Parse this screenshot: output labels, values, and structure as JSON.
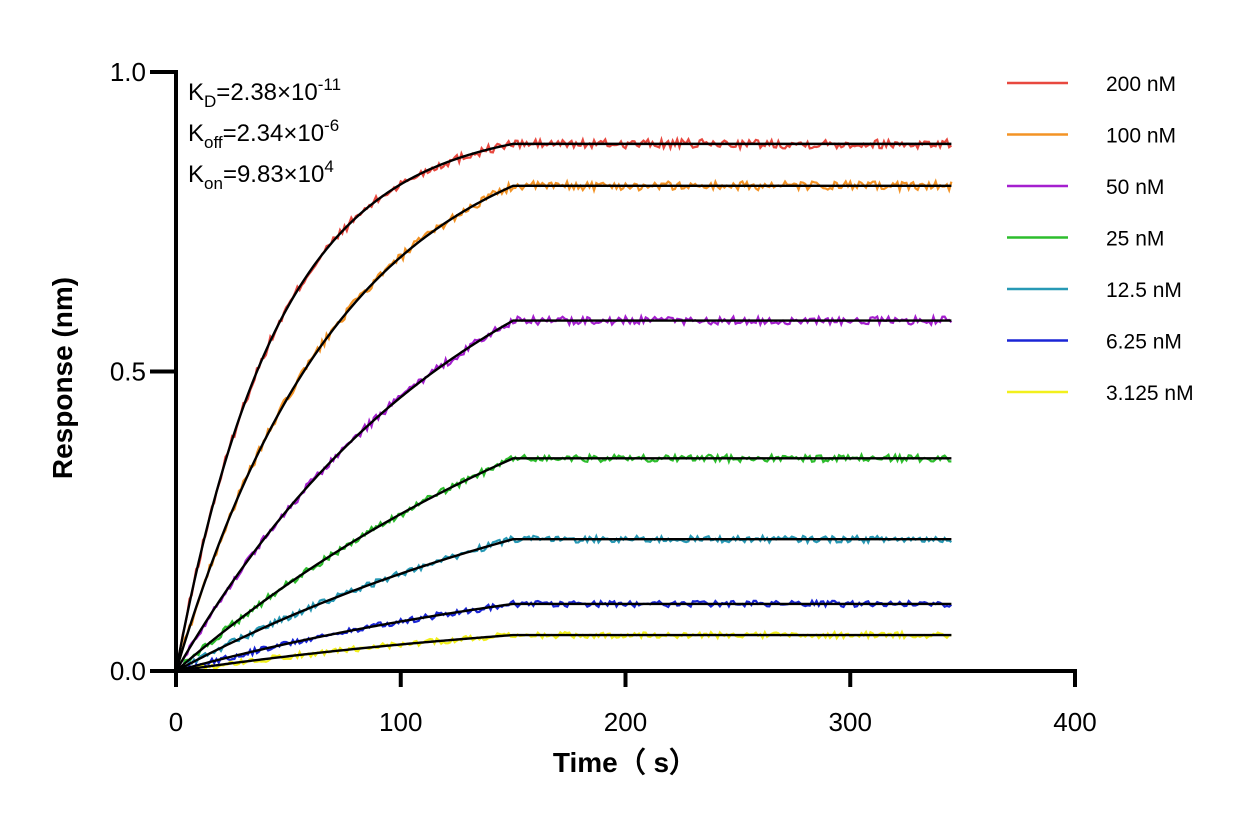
{
  "chart_data": {
    "type": "line",
    "title": "",
    "xlabel": "Time（ s）",
    "ylabel": "Response (nm)",
    "xlim": [
      0,
      400
    ],
    "ylim": [
      0.0,
      1.0
    ],
    "x_ticks": [
      0,
      100,
      200,
      300,
      400
    ],
    "x_tick_labels": [
      "0",
      "100",
      "200",
      "300",
      "400"
    ],
    "y_ticks": [
      0.0,
      0.5,
      1.0
    ],
    "y_tick_labels": [
      "0.0",
      "0.5",
      "1.0"
    ],
    "grid": false,
    "legend_position": "right",
    "association_end_x": 150,
    "data_end_x": 345,
    "annotations": [
      {
        "name": "kd",
        "main": "K",
        "sub": "D",
        "mid": "=2.38×10",
        "sup": "-11"
      },
      {
        "name": "koff",
        "main": "K",
        "sub": "off",
        "mid": "=2.34×10",
        "sup": "-6"
      },
      {
        "name": "kon",
        "main": "K",
        "sub": "on",
        "mid": "=9.83×10",
        "sup": "4"
      }
    ],
    "fit_color": "#000000",
    "series": [
      {
        "name": "200 nM",
        "color": "#E8483F",
        "plateau": 0.88,
        "k": 0.022
      },
      {
        "name": "100 nM",
        "color": "#F39325",
        "plateau": 0.81,
        "k": 0.0135
      },
      {
        "name": "50 nM",
        "color": "#A51FCF",
        "plateau": 0.585,
        "k": 0.0075
      },
      {
        "name": "25 nM",
        "color": "#2DBD2D",
        "plateau": 0.355,
        "k": 0.0045
      },
      {
        "name": "12.5 nM",
        "color": "#2799B5",
        "plateau": 0.22,
        "k": 0.0045
      },
      {
        "name": "6.25 nM",
        "color": "#1A25D6",
        "plateau": 0.112,
        "k": 0.0045
      },
      {
        "name": "3.125 nM",
        "color": "#F2F01C",
        "plateau": 0.06,
        "k": 0.0045
      }
    ]
  }
}
